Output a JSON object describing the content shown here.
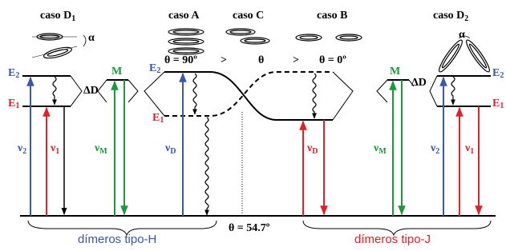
{
  "cases": {
    "d1": {
      "main": "caso D",
      "sub": "1"
    },
    "a": "caso A",
    "c": "caso C",
    "b": "caso B",
    "d2": {
      "main": "caso D",
      "sub": "2"
    },
    "alpha_left": "α",
    "alpha_right": "α"
  },
  "angles": {
    "theta_90": "θ = 90º",
    "gt_1": ">",
    "theta": "θ",
    "gt_2": ">",
    "theta_0": "θ = 0º",
    "theta_magic": "θ = 54.7º"
  },
  "h_side": {
    "e2": {
      "main": "E",
      "sub": "2"
    },
    "e1": {
      "main": "E",
      "sub": "1"
    },
    "delta": "ΔD",
    "m": "M",
    "e2_a": {
      "main": "E",
      "sub": "2"
    },
    "e1_a": {
      "main": "E",
      "sub": "1"
    },
    "nu2": {
      "main": "ν",
      "sub": "2"
    },
    "nu1": {
      "main": "ν",
      "sub": "1"
    },
    "num": {
      "main": "ν",
      "sub": "M"
    },
    "nud": {
      "main": "ν",
      "sub": "D"
    },
    "label": "dímeros tipo-H"
  },
  "j_side": {
    "m": "M",
    "delta": "ΔD",
    "e2": {
      "main": "E",
      "sub": "2"
    },
    "e1": {
      "main": "E",
      "sub": "1"
    },
    "nud": {
      "main": "ν",
      "sub": "D"
    },
    "num": {
      "main": "ν",
      "sub": "M"
    },
    "nu2": {
      "main": "ν",
      "sub": "2"
    },
    "nu1": {
      "main": "ν",
      "sub": "1"
    },
    "label": "dímeros tipo-J"
  }
}
